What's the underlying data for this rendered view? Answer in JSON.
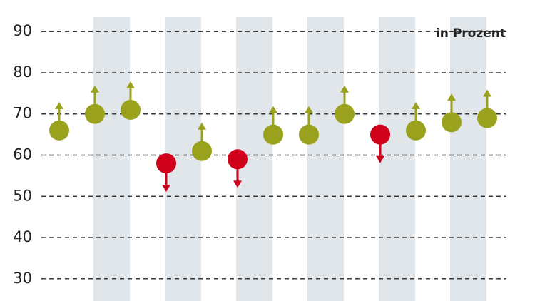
{
  "chart_data": {
    "type": "scatter",
    "title": "in Prozent",
    "categories": [
      null,
      null,
      null,
      null,
      null,
      null,
      null,
      null,
      null,
      null,
      null,
      null,
      null
    ],
    "values": [
      66,
      70,
      71,
      58,
      61,
      59,
      65,
      65,
      70,
      65,
      66,
      68,
      69
    ],
    "point_colors": [
      "#9aa11c",
      "#9aa11c",
      "#9aa11c",
      "#d0021b",
      "#9aa11c",
      "#d0021b",
      "#9aa11c",
      "#9aa11c",
      "#9aa11c",
      "#d0021b",
      "#9aa11c",
      "#9aa11c",
      "#9aa11c"
    ],
    "directions": [
      "up",
      "up",
      "up",
      "down",
      "up",
      "down",
      "up",
      "up",
      "up",
      "down",
      "up",
      "up",
      "up"
    ],
    "ylim": [
      24.6,
      93.5
    ],
    "yticks": [
      30,
      40,
      50,
      60,
      70,
      80,
      90
    ],
    "grid": true
  }
}
